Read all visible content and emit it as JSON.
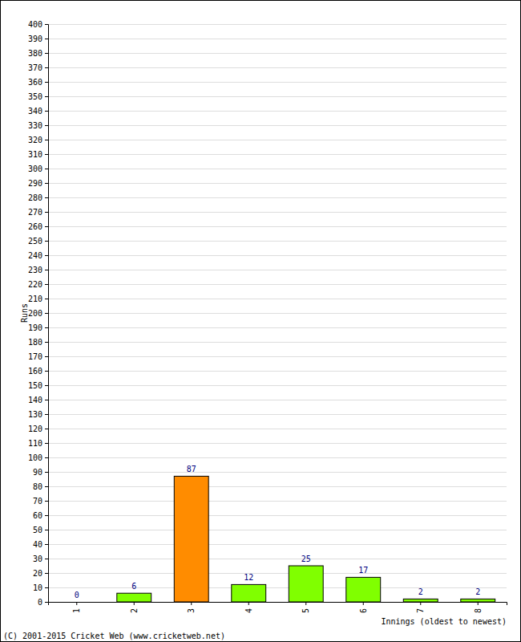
{
  "chart_data": {
    "type": "bar",
    "categories": [
      "1",
      "2",
      "3",
      "4",
      "5",
      "6",
      "7",
      "8"
    ],
    "values": [
      0,
      6,
      87,
      12,
      25,
      17,
      2,
      2
    ],
    "colors": [
      "#80ff00",
      "#80ff00",
      "#ff8c00",
      "#80ff00",
      "#80ff00",
      "#80ff00",
      "#80ff00",
      "#80ff00"
    ],
    "x_label": "Innings (oldest to newest)",
    "y_label": "Runs",
    "annotations": [
      "(C) 2001-2015 Cricket Web (www.cricketweb.net)"
    ],
    "ylim": [
      0,
      400
    ],
    "yticks": [
      0,
      10,
      20,
      30,
      40,
      50,
      60,
      70,
      80,
      90,
      100,
      110,
      120,
      130,
      140,
      150,
      160,
      170,
      180,
      190,
      200,
      210,
      220,
      230,
      240,
      250,
      260,
      270,
      280,
      290,
      300,
      310,
      320,
      330,
      340,
      350,
      360,
      370,
      380,
      390,
      400
    ],
    "grid": true,
    "data_labels": true
  }
}
